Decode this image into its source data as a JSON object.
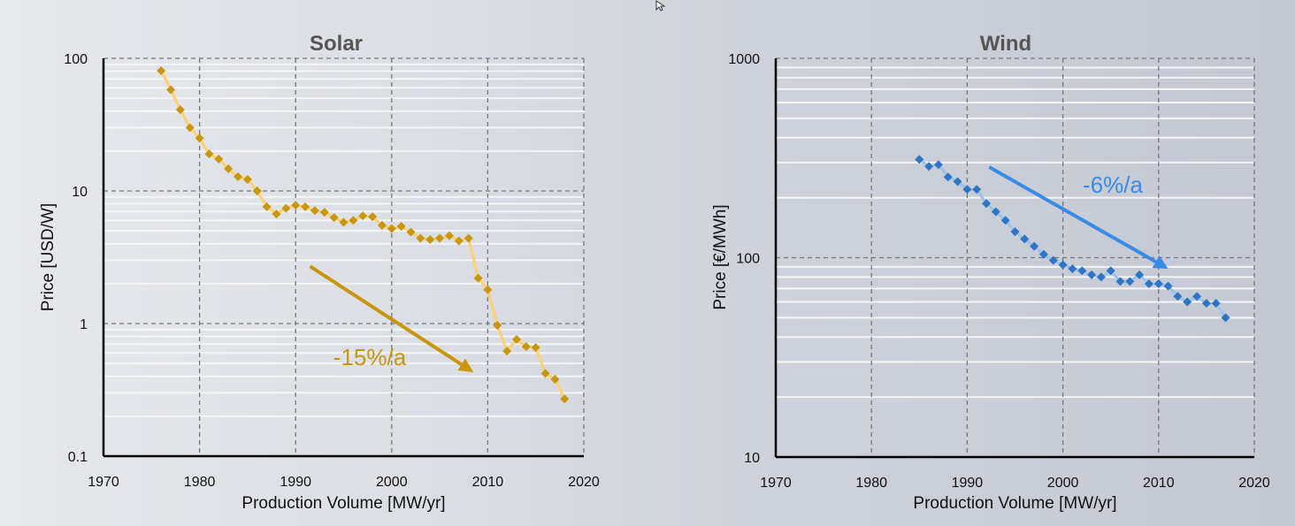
{
  "chart_data": [
    {
      "type": "line",
      "title": "Solar",
      "xlabel": "Production Volume [MW/yr]",
      "ylabel": "Price [USD/W]",
      "xlim": [
        1970,
        2020
      ],
      "ylim": [
        0.1,
        100
      ],
      "yscale": "log",
      "x_ticks": [
        "1970",
        "1980",
        "1990",
        "2000",
        "2010",
        "2020"
      ],
      "y_ticks": [
        "100",
        "10",
        "1",
        "0.1"
      ],
      "grid": true,
      "legend": "none",
      "series": [
        {
          "name": "Solar",
          "color": "#c8960c",
          "line_color": "#ffd070",
          "x": [
            1976,
            1977,
            1978,
            1979,
            1980,
            1981,
            1982,
            1983,
            1984,
            1985,
            1986,
            1987,
            1988,
            1989,
            1990,
            1991,
            1992,
            1993,
            1994,
            1995,
            1996,
            1997,
            1998,
            1999,
            2000,
            2001,
            2002,
            2003,
            2004,
            2005,
            2006,
            2007,
            2008,
            2009,
            2010,
            2011,
            2012,
            2013,
            2014,
            2015,
            2016,
            2017,
            2018
          ],
          "values": [
            80.7,
            58,
            41,
            30,
            25,
            19,
            17.4,
            14.7,
            12.8,
            12.2,
            10,
            7.6,
            6.7,
            7.4,
            7.8,
            7.6,
            7.1,
            6.9,
            6.3,
            5.8,
            6.0,
            6.5,
            6.4,
            5.5,
            5.2,
            5.4,
            4.9,
            4.4,
            4.3,
            4.4,
            4.6,
            4.2,
            4.4,
            2.2,
            1.8,
            0.97,
            0.62,
            0.76,
            0.67,
            0.66,
            0.42,
            0.38,
            0.27
          ]
        }
      ],
      "annotations": [
        {
          "text": "-15%/a",
          "color": "#c8960c",
          "arrow_from": [
            1991.5,
            2.7
          ],
          "arrow_to": [
            2008.5,
            0.43
          ]
        }
      ]
    },
    {
      "type": "scatter",
      "title": "Wind",
      "xlabel": "Production Volume [MW/yr]",
      "ylabel": "Price [€/MWh]",
      "xlim": [
        1970,
        2020
      ],
      "ylim": [
        10,
        1000
      ],
      "yscale": "log",
      "x_ticks": [
        "1970",
        "1980",
        "1990",
        "2000",
        "2010",
        "2020"
      ],
      "y_ticks": [
        "1000",
        "100",
        "10"
      ],
      "grid": true,
      "legend": "none",
      "series": [
        {
          "name": "Wind",
          "color": "#2e75c6",
          "line_color": "#9cc3ea",
          "x": [
            1985,
            1986,
            1987,
            1988,
            1989,
            1990,
            1991,
            1992,
            1993,
            1994,
            1995,
            1996,
            1997,
            1998,
            1999,
            2000,
            2001,
            2002,
            2003,
            2004,
            2005,
            2006,
            2007,
            2008,
            2009,
            2010,
            2011,
            2012,
            2013,
            2014,
            2015,
            2016,
            2017
          ],
          "values": [
            311,
            287,
            293,
            254,
            241,
            220,
            220,
            187,
            170,
            154,
            135,
            124,
            114,
            104,
            97,
            92,
            88,
            86,
            82,
            80,
            86,
            76,
            76,
            82,
            74,
            74,
            72,
            64,
            60,
            64,
            59,
            59,
            50
          ]
        }
      ],
      "annotations": [
        {
          "text": "-6%/a",
          "color": "#3a8ae8",
          "arrow_from": [
            1992.3,
            285
          ],
          "arrow_to": [
            2011,
            88
          ]
        }
      ]
    }
  ],
  "cursor": {
    "icon": "mouse-pointer-icon"
  }
}
